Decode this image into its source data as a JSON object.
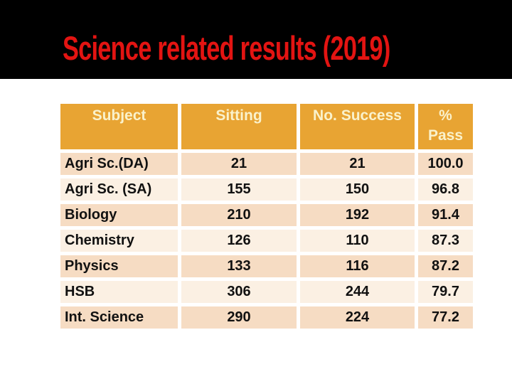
{
  "slide": {
    "title": "Science related results (2019)"
  },
  "colors": {
    "banner_bg": "#000000",
    "title_red": "#E31412",
    "slide_bg": "#FFFFFF",
    "table_header_bg": "#E8A433",
    "table_header_text": "#FAF2CC",
    "row_dark": "#F6DCC3",
    "row_light": "#FBF0E3",
    "cell_text": "#111111"
  },
  "table": {
    "columns": [
      {
        "label": "Subject"
      },
      {
        "label": "Sitting"
      },
      {
        "label": "No. Success"
      },
      {
        "label": "%",
        "label_line2": "Pass"
      }
    ],
    "rows": [
      [
        "Agri Sc.(DA)",
        "21",
        "21",
        "100.0"
      ],
      [
        "Agri Sc. (SA)",
        "155",
        "150",
        "96.8"
      ],
      [
        "Biology",
        "210",
        "192",
        "91.4"
      ],
      [
        "Chemistry",
        "126",
        "110",
        "87.3"
      ],
      [
        "Physics",
        "133",
        "116",
        "87.2"
      ],
      [
        "HSB",
        "306",
        "244",
        "79.7"
      ],
      [
        "Int. Science",
        "290",
        "224",
        "77.2"
      ]
    ]
  }
}
